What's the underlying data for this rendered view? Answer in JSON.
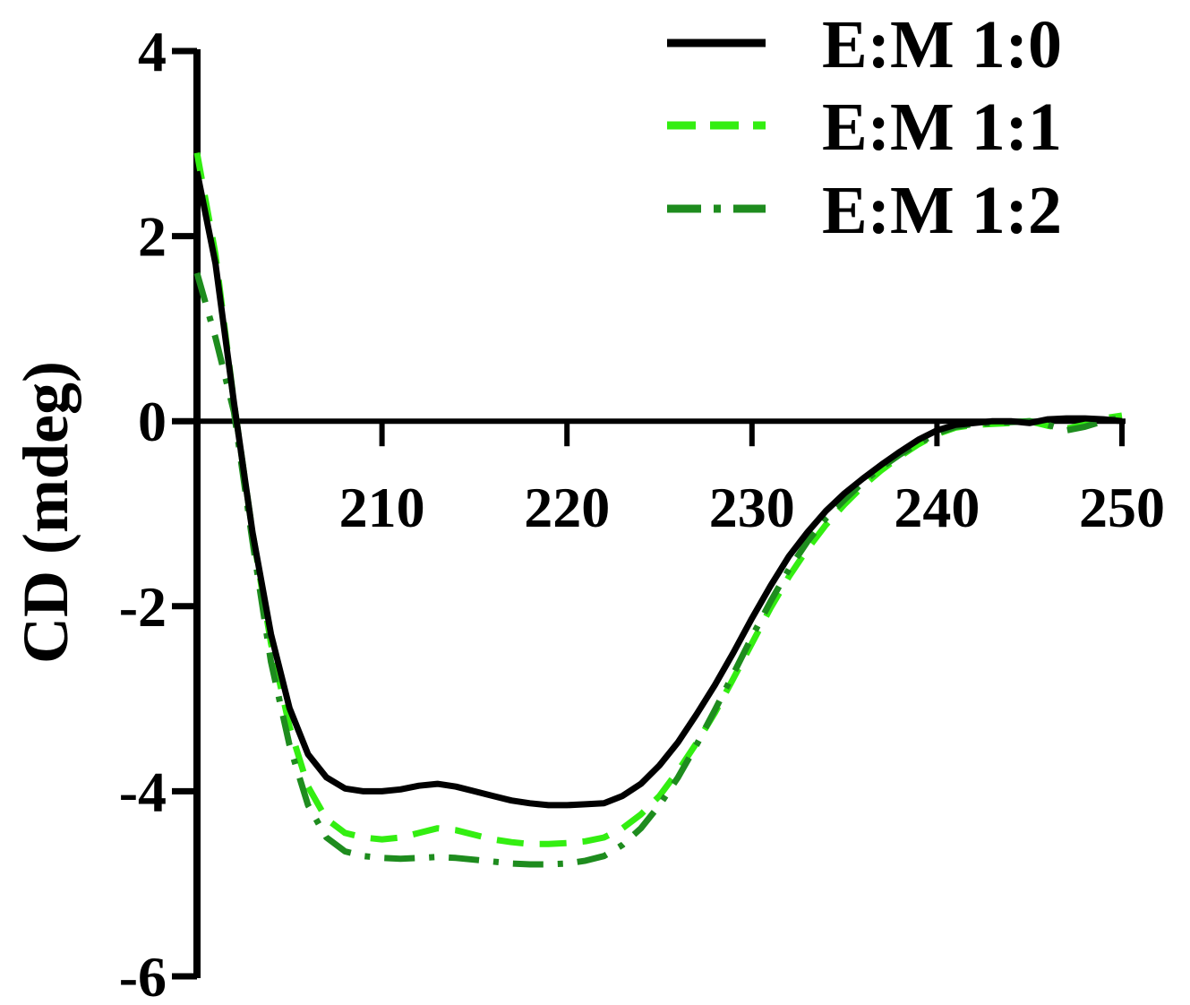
{
  "chart_data": {
    "type": "line",
    "title": "",
    "xlabel": "",
    "ylabel": "CD (mdeg)",
    "xlim": [
      200,
      250
    ],
    "ylim": [
      -6,
      4
    ],
    "xticks": [
      210,
      220,
      230,
      240,
      250
    ],
    "xtick_labels": [
      "210",
      "220",
      "230",
      "240",
      "250"
    ],
    "yticks": [
      4,
      2,
      0,
      -2,
      -4,
      -6
    ],
    "ytick_labels": [
      "4",
      "2",
      "0",
      "-2",
      "-4",
      "-6"
    ],
    "grid": false,
    "legend_position": "top-right",
    "series": [
      {
        "name": "E:M 1:0",
        "color": "#000000",
        "style": "solid",
        "x": [
          200,
          201,
          202,
          203,
          204,
          205,
          206,
          207,
          208,
          209,
          210,
          211,
          212,
          213,
          214,
          215,
          216,
          217,
          218,
          219,
          220,
          221,
          222,
          223,
          224,
          225,
          226,
          227,
          228,
          229,
          230,
          231,
          232,
          233,
          234,
          235,
          236,
          237,
          238,
          239,
          240,
          241,
          242,
          243,
          244,
          245,
          246,
          247,
          248,
          249,
          250
        ],
        "y": [
          2.7,
          1.7,
          0.2,
          -1.2,
          -2.3,
          -3.1,
          -3.6,
          -3.85,
          -3.97,
          -4.0,
          -4.0,
          -3.98,
          -3.94,
          -3.92,
          -3.95,
          -4.0,
          -4.05,
          -4.1,
          -4.13,
          -4.15,
          -4.15,
          -4.14,
          -4.13,
          -4.05,
          -3.92,
          -3.72,
          -3.47,
          -3.17,
          -2.85,
          -2.5,
          -2.13,
          -1.78,
          -1.46,
          -1.2,
          -0.97,
          -0.78,
          -0.62,
          -0.47,
          -0.33,
          -0.2,
          -0.1,
          -0.04,
          -0.02,
          0.0,
          0.0,
          -0.02,
          0.02,
          0.03,
          0.03,
          0.02,
          0.0
        ]
      },
      {
        "name": "E:M 1:1",
        "color": "#33ee11",
        "style": "dashed",
        "x": [
          200,
          201,
          202,
          203,
          204,
          205,
          206,
          207,
          208,
          209,
          210,
          211,
          212,
          213,
          214,
          215,
          216,
          217,
          218,
          219,
          220,
          221,
          222,
          223,
          224,
          225,
          226,
          227,
          228,
          229,
          230,
          231,
          232,
          233,
          234,
          235,
          236,
          237,
          238,
          239,
          240,
          241,
          242,
          243,
          244,
          245,
          246,
          247,
          248,
          249,
          250
        ],
        "y": [
          2.9,
          1.8,
          0.2,
          -1.2,
          -2.4,
          -3.3,
          -3.95,
          -4.3,
          -4.45,
          -4.5,
          -4.52,
          -4.5,
          -4.45,
          -4.4,
          -4.42,
          -4.47,
          -4.52,
          -4.55,
          -4.57,
          -4.57,
          -4.56,
          -4.54,
          -4.5,
          -4.4,
          -4.25,
          -4.05,
          -3.78,
          -3.48,
          -3.15,
          -2.78,
          -2.4,
          -2.02,
          -1.68,
          -1.38,
          -1.12,
          -0.9,
          -0.7,
          -0.53,
          -0.38,
          -0.25,
          -0.14,
          -0.07,
          -0.04,
          -0.03,
          -0.02,
          0.0,
          -0.05,
          -0.08,
          -0.04,
          0.03,
          0.06
        ]
      },
      {
        "name": "E:M 1:2",
        "color": "#1e8c1e",
        "style": "dashdot",
        "x": [
          200,
          201,
          202,
          203,
          204,
          205,
          206,
          207,
          208,
          209,
          210,
          211,
          212,
          213,
          214,
          215,
          216,
          217,
          218,
          219,
          220,
          221,
          222,
          223,
          224,
          225,
          226,
          227,
          228,
          229,
          230,
          231,
          232,
          233,
          234,
          235,
          236,
          237,
          238,
          239,
          240,
          241,
          242,
          243,
          244,
          245,
          246,
          247,
          248,
          249,
          250
        ],
        "y": [
          1.6,
          0.9,
          0.1,
          -1.3,
          -2.6,
          -3.5,
          -4.15,
          -4.5,
          -4.65,
          -4.7,
          -4.72,
          -4.73,
          -4.72,
          -4.71,
          -4.72,
          -4.74,
          -4.76,
          -4.78,
          -4.79,
          -4.79,
          -4.78,
          -4.75,
          -4.7,
          -4.58,
          -4.4,
          -4.15,
          -3.85,
          -3.5,
          -3.12,
          -2.73,
          -2.33,
          -1.95,
          -1.6,
          -1.3,
          -1.05,
          -0.85,
          -0.66,
          -0.5,
          -0.36,
          -0.24,
          -0.13,
          -0.06,
          -0.03,
          -0.02,
          -0.01,
          0.0,
          -0.04,
          -0.1,
          -0.06,
          0.0,
          0.04
        ]
      }
    ]
  }
}
